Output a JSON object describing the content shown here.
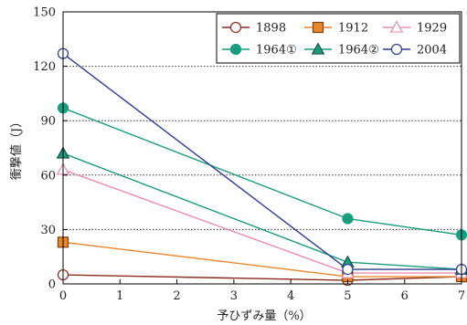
{
  "chart_data": {
    "type": "line",
    "xlabel": "予ひずみ量（%）",
    "ylabel": "衝撃値（J）",
    "xlim": [
      0,
      7
    ],
    "ylim": [
      0,
      150
    ],
    "x_ticks": [
      "0",
      "1",
      "2",
      "3",
      "4",
      "5",
      "6",
      "7"
    ],
    "y_ticks": [
      "0",
      "30",
      "60",
      "90",
      "120",
      "150"
    ],
    "grid": "horizontal dotted",
    "legend_position": "top-right",
    "series": [
      {
        "name": "1898",
        "color": "#8b2a1f",
        "marker": "circle-open",
        "x": [
          0,
          5,
          7
        ],
        "y": [
          5,
          2,
          4
        ]
      },
      {
        "name": "1912",
        "color": "#e8862a",
        "marker": "square-filled",
        "x": [
          0,
          5,
          7
        ],
        "y": [
          23,
          4,
          4
        ]
      },
      {
        "name": "1929",
        "color": "#e88fb0",
        "marker": "triangle-open",
        "x": [
          0,
          5,
          7
        ],
        "y": [
          63,
          6,
          6
        ]
      },
      {
        "name": "1964①",
        "color": "#1a9c7f",
        "marker": "circle-filled",
        "x": [
          0,
          5,
          7
        ],
        "y": [
          97,
          36,
          27
        ]
      },
      {
        "name": "1964②",
        "color": "#1a9c7f",
        "marker": "triangle-filled",
        "x": [
          0,
          5,
          7
        ],
        "y": [
          72,
          12,
          8
        ]
      },
      {
        "name": "2004",
        "color": "#2f3a8f",
        "marker": "circle-open",
        "x": [
          0,
          5,
          7
        ],
        "y": [
          127,
          8,
          8
        ]
      }
    ]
  }
}
